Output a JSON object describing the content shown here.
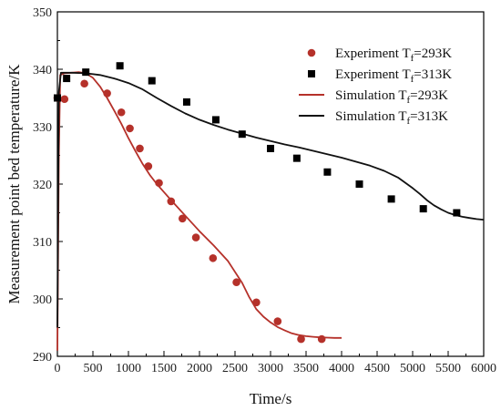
{
  "chart_data": {
    "type": "scatter",
    "xlabel": "Time/s",
    "ylabel": "Measurement point bed temperature/K",
    "xlim": [
      0,
      6000
    ],
    "ylim": [
      290,
      350
    ],
    "xticks": [
      0,
      500,
      1000,
      1500,
      2000,
      2500,
      3000,
      3500,
      4000,
      4500,
      5000,
      5500,
      6000
    ],
    "yticks": [
      290,
      300,
      310,
      320,
      330,
      340,
      350
    ],
    "legend_position": "top-right",
    "series": [
      {
        "name": "Experiment  Tf=293K",
        "kind": "scatter",
        "marker": "circle",
        "color": "#b5312a",
        "x": [
          0,
          100,
          380,
          700,
          900,
          1020,
          1160,
          1280,
          1430,
          1600,
          1760,
          1950,
          2190,
          2520,
          2800,
          3100,
          3430,
          3720
        ],
        "y": [
          335,
          334.8,
          337.5,
          335.8,
          332.5,
          329.7,
          326.2,
          323.1,
          320.2,
          317,
          314,
          310.7,
          307.1,
          302.9,
          299.4,
          296.1,
          293,
          293
        ]
      },
      {
        "name": "Experiment  Tf=313K",
        "kind": "scatter",
        "marker": "square",
        "color": "#000000",
        "x": [
          0,
          130,
          400,
          880,
          1330,
          1820,
          2230,
          2600,
          3000,
          3370,
          3800,
          4250,
          4700,
          5150,
          5620
        ],
        "y": [
          335,
          338.4,
          339.5,
          340.6,
          338,
          334.3,
          331.2,
          328.7,
          326.2,
          324.5,
          322.1,
          320,
          317.4,
          315.7,
          315
        ]
      },
      {
        "name": "Simulation  Tf=293K",
        "kind": "line",
        "color": "#b5312a",
        "x": [
          0,
          20,
          40,
          100,
          200,
          300,
          400,
          500,
          600,
          700,
          800,
          900,
          1000,
          1100,
          1200,
          1300,
          1400,
          1500,
          1600,
          1800,
          2000,
          2200,
          2400,
          2600,
          2700,
          2800,
          2900,
          3000,
          3100,
          3200,
          3300,
          3400,
          3500,
          3600,
          3700,
          3800,
          3900,
          4000
        ],
        "y": [
          291,
          325,
          339,
          339.3,
          339.4,
          339.5,
          339.3,
          338.5,
          337,
          335,
          332.8,
          330.5,
          328,
          325.7,
          323.5,
          321.6,
          320,
          318.6,
          317.2,
          314.5,
          311.8,
          309.3,
          306.6,
          302.8,
          300.3,
          298.2,
          296.9,
          295.9,
          295.1,
          294.5,
          294,
          293.7,
          293.5,
          293.4,
          293.3,
          293.25,
          293.2,
          293.2
        ]
      },
      {
        "name": "Simulation  Tf=313K",
        "kind": "line",
        "color": "#111111",
        "x": [
          0,
          20,
          50,
          200,
          400,
          600,
          800,
          1000,
          1200,
          1400,
          1600,
          1800,
          2000,
          2200,
          2400,
          2600,
          2800,
          3000,
          3200,
          3400,
          3600,
          3800,
          4000,
          4200,
          4400,
          4600,
          4800,
          5000,
          5100,
          5200,
          5300,
          5400,
          5500,
          5600,
          5700,
          5800,
          5900,
          6000
        ],
        "y": [
          295,
          336,
          339.4,
          339.4,
          339.3,
          339,
          338.4,
          337.6,
          336.5,
          335,
          333.6,
          332.3,
          331.2,
          330.3,
          329.5,
          328.8,
          328.1,
          327.5,
          326.9,
          326.4,
          325.8,
          325.2,
          324.6,
          323.9,
          323.2,
          322.3,
          321.1,
          319.3,
          318.3,
          317.2,
          316.3,
          315.6,
          315,
          314.6,
          314.3,
          314.1,
          313.9,
          313.8
        ]
      }
    ]
  }
}
